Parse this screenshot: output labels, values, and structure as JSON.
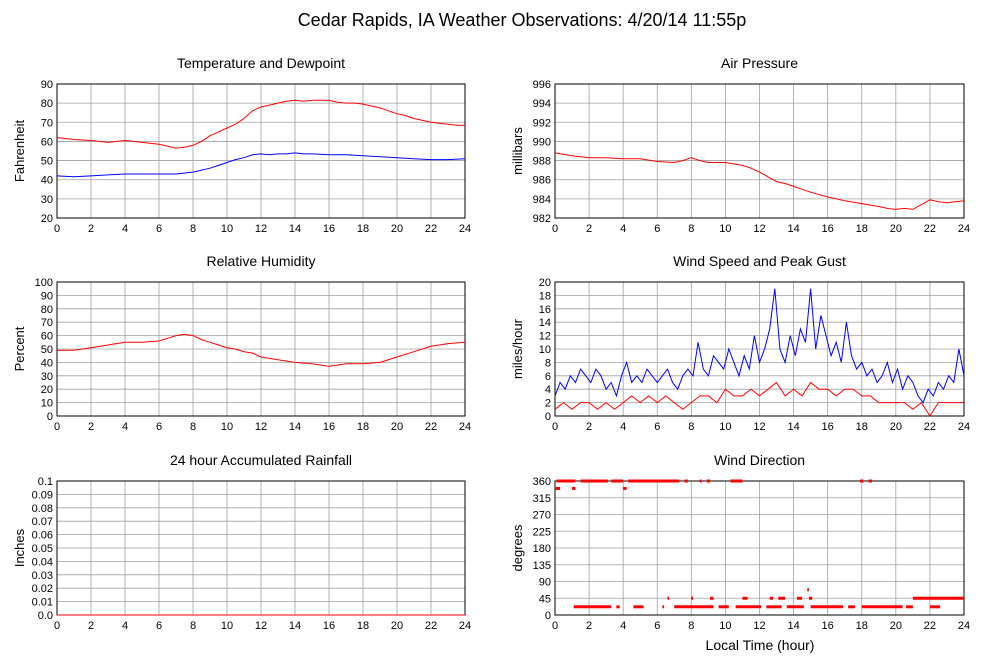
{
  "page": {
    "title": "Cedar Rapids, IA Weather Observations: 4/20/14 11:55p",
    "xlabel_bottom": "Local Time (hour)"
  },
  "colors": {
    "red": "#ff0000",
    "blue": "#0000ff",
    "grid": "#a0a0a0",
    "axis": "#000000"
  },
  "chart_data": [
    {
      "id": "temp",
      "type": "line",
      "title": "Temperature and Dewpoint",
      "ylabel": "Fahrenheit",
      "xlim": [
        0,
        24
      ],
      "ylim": [
        20,
        90
      ],
      "xticks": [
        0,
        2,
        4,
        6,
        8,
        10,
        12,
        14,
        16,
        18,
        20,
        22,
        24
      ],
      "yticks": [
        20,
        30,
        40,
        50,
        60,
        70,
        80,
        90
      ],
      "series": [
        {
          "color": "red",
          "x": [
            0,
            1,
            2,
            3,
            4,
            5,
            6,
            7,
            7.5,
            8,
            8.5,
            9,
            9.5,
            10,
            10.5,
            11,
            11.5,
            12,
            12.5,
            13,
            13.5,
            14,
            14.5,
            15,
            15.5,
            16,
            16.5,
            17,
            17.5,
            18,
            18.5,
            19,
            19.5,
            20,
            20.5,
            21,
            21.5,
            22,
            22.5,
            23,
            23.5,
            24
          ],
          "y": [
            62,
            61,
            60.5,
            59.5,
            60.5,
            59.5,
            58.5,
            56.5,
            57,
            58,
            60,
            63,
            65,
            67,
            69,
            72,
            76,
            78,
            79,
            80,
            81,
            81.5,
            81,
            81.5,
            81.5,
            81.5,
            80.5,
            80,
            80,
            79.5,
            78.5,
            77.5,
            76,
            74.5,
            73.5,
            72,
            71,
            70,
            69.5,
            69,
            68.5,
            68.5
          ]
        },
        {
          "color": "blue",
          "x": [
            0,
            1,
            2,
            3,
            4,
            5,
            6,
            7,
            8,
            9,
            9.5,
            10,
            10.5,
            11,
            11.5,
            12,
            12.5,
            13,
            13.5,
            14,
            14.5,
            15,
            16,
            17,
            18,
            19,
            20,
            21,
            22,
            23,
            24
          ],
          "y": [
            42,
            41.5,
            42,
            42.5,
            43,
            43,
            43,
            43,
            44,
            46,
            47.5,
            49,
            50.5,
            51.5,
            53,
            53.5,
            53,
            53.5,
            53.5,
            54,
            53.5,
            53.5,
            53,
            53,
            52.5,
            52,
            51.5,
            51,
            50.5,
            50.5,
            51
          ]
        }
      ]
    },
    {
      "id": "pres",
      "type": "line",
      "title": "Air Pressure",
      "ylabel": "millibars",
      "xlim": [
        0,
        24
      ],
      "ylim": [
        982,
        996
      ],
      "xticks": [
        0,
        2,
        4,
        6,
        8,
        10,
        12,
        14,
        16,
        18,
        20,
        22,
        24
      ],
      "yticks": [
        982,
        984,
        986,
        988,
        990,
        992,
        994,
        996
      ],
      "series": [
        {
          "color": "red",
          "x": [
            0,
            1,
            2,
            3,
            4,
            5,
            6,
            7,
            7.5,
            8,
            8.5,
            9,
            10,
            11,
            11.5,
            12,
            12.5,
            13,
            13.5,
            14,
            14.5,
            15,
            16,
            17,
            18,
            19,
            19.5,
            20,
            20.5,
            21,
            21.5,
            22,
            22.5,
            23,
            24
          ],
          "y": [
            988.8,
            988.5,
            988.3,
            988.3,
            988.2,
            988.2,
            987.9,
            987.8,
            988.0,
            988.3,
            988.0,
            987.8,
            987.8,
            987.5,
            987.2,
            986.8,
            986.3,
            985.8,
            985.6,
            985.3,
            985.0,
            984.7,
            984.2,
            983.8,
            983.5,
            983.2,
            983.0,
            982.9,
            983.0,
            982.9,
            983.4,
            983.9,
            983.7,
            983.6,
            983.8
          ]
        }
      ]
    },
    {
      "id": "rh",
      "type": "line",
      "title": "Relative Humidity",
      "ylabel": "Percent",
      "xlim": [
        0,
        24
      ],
      "ylim": [
        0,
        100
      ],
      "xticks": [
        0,
        2,
        4,
        6,
        8,
        10,
        12,
        14,
        16,
        18,
        20,
        22,
        24
      ],
      "yticks": [
        0,
        10,
        20,
        30,
        40,
        50,
        60,
        70,
        80,
        90,
        100
      ],
      "series": [
        {
          "color": "red",
          "x": [
            0,
            1,
            2,
            3,
            4,
            5,
            6,
            6.5,
            7,
            7.5,
            8,
            8.5,
            9,
            9.5,
            10,
            10.5,
            11,
            11.5,
            12,
            12.5,
            13,
            14,
            15,
            16,
            16.5,
            17,
            18,
            19,
            20,
            21,
            22,
            23,
            24
          ],
          "y": [
            49,
            49,
            51,
            53,
            55,
            55,
            56,
            58,
            60,
            61,
            60,
            57,
            55,
            53,
            51,
            50,
            48,
            47,
            44,
            43,
            42,
            40,
            39,
            37,
            38,
            39,
            39,
            40,
            44,
            48,
            52,
            54,
            55
          ]
        }
      ]
    },
    {
      "id": "wind",
      "type": "line",
      "title": "Wind Speed and Peak Gust",
      "ylabel": "miles/hour",
      "xlim": [
        0,
        24
      ],
      "ylim": [
        0,
        20
      ],
      "xticks": [
        0,
        2,
        4,
        6,
        8,
        10,
        12,
        14,
        16,
        18,
        20,
        22,
        24
      ],
      "yticks": [
        0,
        2,
        4,
        6,
        8,
        10,
        12,
        14,
        16,
        18,
        20
      ],
      "series": [
        {
          "color": "blue",
          "x": [
            0,
            0.3,
            0.6,
            0.9,
            1.2,
            1.5,
            1.8,
            2.1,
            2.4,
            2.7,
            3,
            3.3,
            3.6,
            3.9,
            4.2,
            4.5,
            4.8,
            5.1,
            5.4,
            5.7,
            6,
            6.3,
            6.6,
            6.9,
            7.2,
            7.5,
            7.8,
            8.1,
            8.4,
            8.7,
            9,
            9.3,
            9.6,
            9.9,
            10.2,
            10.5,
            10.8,
            11.1,
            11.4,
            11.7,
            12,
            12.3,
            12.6,
            12.9,
            13.2,
            13.5,
            13.8,
            14.1,
            14.4,
            14.7,
            15,
            15.3,
            15.6,
            15.9,
            16.2,
            16.5,
            16.8,
            17.1,
            17.4,
            17.7,
            18,
            18.3,
            18.6,
            18.9,
            19.2,
            19.5,
            19.8,
            20.1,
            20.4,
            20.7,
            21,
            21.3,
            21.6,
            21.9,
            22.2,
            22.5,
            22.8,
            23.1,
            23.4,
            23.7,
            24
          ],
          "y": [
            3,
            5,
            4,
            6,
            5,
            7,
            6,
            5,
            7,
            6,
            4,
            5,
            3,
            6,
            8,
            5,
            6,
            5,
            7,
            6,
            5,
            6,
            7,
            5,
            4,
            6,
            7,
            6,
            11,
            7,
            6,
            9,
            8,
            7,
            10,
            8,
            6,
            9,
            7,
            12,
            8,
            10,
            13,
            19,
            10,
            8,
            12,
            9,
            13,
            11,
            19,
            10,
            15,
            12,
            9,
            11,
            8,
            14,
            9,
            7,
            8,
            6,
            7,
            5,
            6,
            8,
            5,
            7,
            4,
            6,
            5,
            3,
            2,
            4,
            3,
            5,
            4,
            6,
            5,
            10,
            6
          ]
        },
        {
          "color": "red",
          "x": [
            0,
            0.5,
            1,
            1.5,
            2,
            2.5,
            3,
            3.5,
            4,
            4.5,
            5,
            5.5,
            6,
            6.5,
            7,
            7.5,
            8,
            8.5,
            9,
            9.5,
            10,
            10.5,
            11,
            11.5,
            12,
            12.5,
            13,
            13.5,
            14,
            14.5,
            15,
            15.5,
            16,
            16.5,
            17,
            17.5,
            18,
            18.5,
            19,
            19.5,
            20,
            20.5,
            21,
            21.5,
            22,
            22.5,
            23,
            23.5,
            24
          ],
          "y": [
            1,
            2,
            1,
            2,
            2,
            1,
            2,
            1,
            2,
            3,
            2,
            3,
            2,
            3,
            2,
            1,
            2,
            3,
            3,
            2,
            4,
            3,
            3,
            4,
            3,
            4,
            5,
            3,
            4,
            3,
            5,
            4,
            4,
            3,
            4,
            4,
            3,
            3,
            2,
            2,
            2,
            2,
            1,
            2,
            0,
            2,
            2,
            2,
            2
          ]
        }
      ]
    },
    {
      "id": "rain",
      "type": "line",
      "title": "24 hour Accumulated Rainfall",
      "ylabel": "Inches",
      "xlim": [
        0,
        24
      ],
      "ylim": [
        0,
        0.1
      ],
      "xticks": [
        0,
        2,
        4,
        6,
        8,
        10,
        12,
        14,
        16,
        18,
        20,
        22,
        24
      ],
      "yticks": [
        0,
        0.01,
        0.02,
        0.03,
        0.04,
        0.05,
        0.06,
        0.07,
        0.08,
        0.09,
        0.1
      ],
      "ytick_labels": [
        "0.0",
        "0.01",
        "0.02",
        "0.03",
        "0.04",
        "0.05",
        "0.06",
        "0.07",
        "0.08",
        "0.09",
        "0.1"
      ],
      "series": [
        {
          "color": "red",
          "x": [
            0,
            24
          ],
          "y": [
            0,
            0
          ]
        }
      ]
    },
    {
      "id": "wdir",
      "type": "scatter",
      "title": "Wind Direction",
      "ylabel": "degrees",
      "xlabel": "Local Time (hour)",
      "xlim": [
        0,
        24
      ],
      "ylim": [
        0,
        360
      ],
      "xticks": [
        0,
        2,
        4,
        6,
        8,
        10,
        12,
        14,
        16,
        18,
        20,
        22,
        24
      ],
      "yticks": [
        0,
        45,
        90,
        135,
        180,
        225,
        270,
        315,
        360
      ],
      "series": [
        {
          "color": "red",
          "kind": "segments",
          "segments": [
            [
              0.1,
              1.2,
              360
            ],
            [
              1.5,
              3.1,
              360
            ],
            [
              3.3,
              4.0,
              360
            ],
            [
              4.3,
              7.3,
              360
            ],
            [
              7.6,
              7.8,
              360
            ],
            [
              8.5,
              8.6,
              360
            ],
            [
              8.9,
              9.1,
              360
            ],
            [
              10.3,
              11.0,
              360
            ],
            [
              17.9,
              18.1,
              360
            ],
            [
              18.4,
              18.6,
              360
            ],
            [
              0.0,
              0.3,
              340
            ],
            [
              1.0,
              1.2,
              340
            ],
            [
              4.0,
              4.2,
              340
            ],
            [
              1.1,
              3.3,
              22
            ],
            [
              3.6,
              3.8,
              22
            ],
            [
              4.6,
              5.2,
              22
            ],
            [
              6.3,
              6.4,
              22
            ],
            [
              7.0,
              9.3,
              22
            ],
            [
              9.6,
              10.2,
              22
            ],
            [
              10.6,
              12.1,
              22
            ],
            [
              12.4,
              13.3,
              22
            ],
            [
              13.6,
              14.6,
              22
            ],
            [
              15.0,
              16.9,
              22
            ],
            [
              17.2,
              17.6,
              22
            ],
            [
              18.0,
              20.4,
              22
            ],
            [
              20.6,
              21.0,
              22
            ],
            [
              22.0,
              22.6,
              22
            ],
            [
              8.0,
              8.1,
              45
            ],
            [
              9.1,
              9.3,
              45
            ],
            [
              11.0,
              11.3,
              45
            ],
            [
              12.6,
              12.8,
              45
            ],
            [
              13.1,
              13.5,
              45
            ],
            [
              14.2,
              14.5,
              45
            ],
            [
              14.9,
              15.1,
              45
            ],
            [
              21.0,
              24.0,
              45
            ],
            [
              6.6,
              6.7,
              45
            ],
            [
              14.8,
              14.9,
              68
            ]
          ]
        }
      ]
    }
  ]
}
